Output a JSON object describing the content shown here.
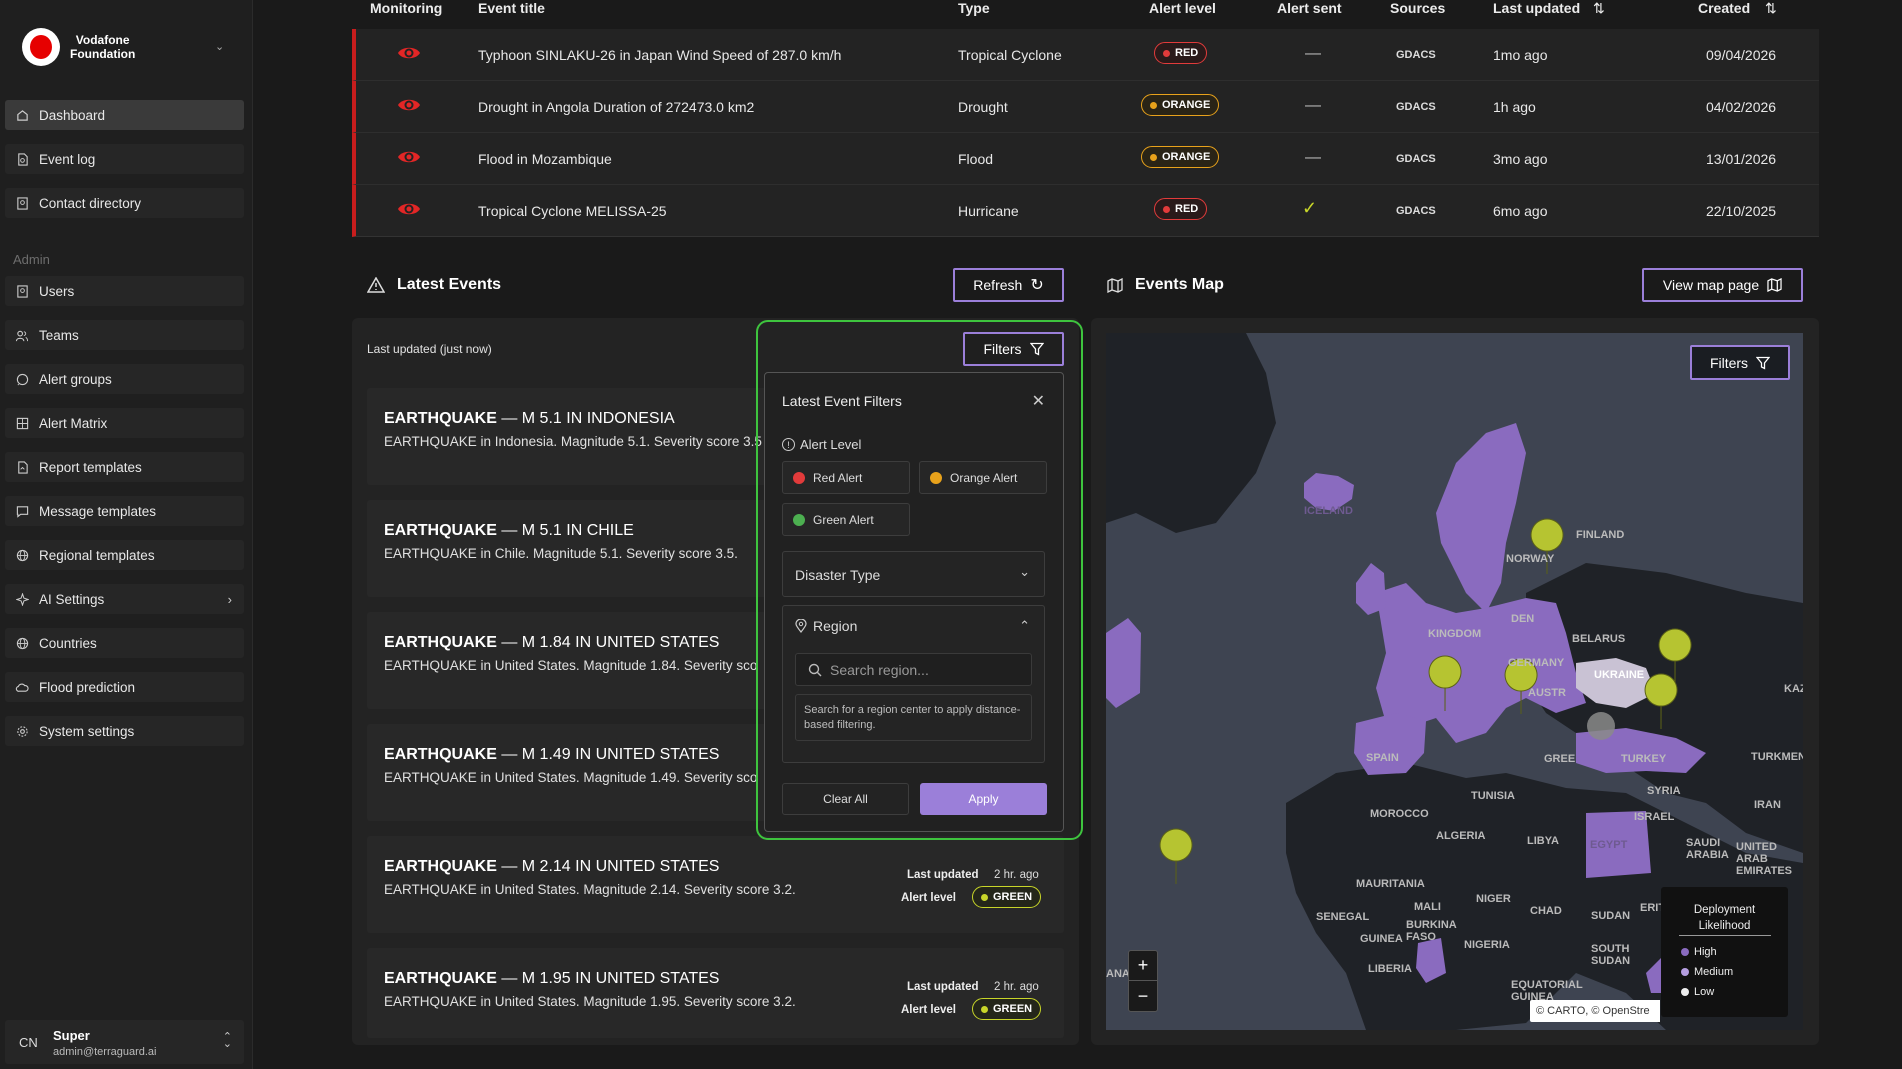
{
  "org": {
    "line1": "Vodafone",
    "line2": "Foundation"
  },
  "sidebar": {
    "items": [
      {
        "label": "Dashboard",
        "icon": "home-icon"
      },
      {
        "label": "Event log",
        "icon": "event-log-icon"
      },
      {
        "label": "Contact directory",
        "icon": "contact-icon"
      }
    ],
    "admin_label": "Admin",
    "admin_items": [
      {
        "label": "Users",
        "icon": "users-icon"
      },
      {
        "label": "Teams",
        "icon": "teams-icon"
      },
      {
        "label": "Alert groups",
        "icon": "alert-groups-icon"
      },
      {
        "label": "Alert Matrix",
        "icon": "matrix-icon"
      },
      {
        "label": "Report templates",
        "icon": "report-icon"
      },
      {
        "label": "Message templates",
        "icon": "message-icon"
      },
      {
        "label": "Regional templates",
        "icon": "globe-icon"
      },
      {
        "label": "AI Settings",
        "icon": "sparkle-icon"
      },
      {
        "label": "Countries",
        "icon": "globe-icon"
      },
      {
        "label": "Flood prediction",
        "icon": "cloud-icon"
      },
      {
        "label": "System settings",
        "icon": "gear-icon"
      }
    ]
  },
  "user": {
    "initials": "CN",
    "name": "Super",
    "email": "admin@terraguard.ai"
  },
  "table": {
    "headers": {
      "monitoring": "Monitoring",
      "title": "Event title",
      "type": "Type",
      "alert_level": "Alert level",
      "alert_sent": "Alert sent",
      "sources": "Sources",
      "last_updated": "Last updated",
      "created": "Created"
    },
    "rows": [
      {
        "title": "Typhoon SINLAKU-26 in Japan Wind Speed of 287.0 km/h",
        "type": "Tropical Cyclone",
        "level": "RED",
        "sent": "—",
        "source": "GDACS",
        "updated": "1mo ago",
        "created": "09/04/2026"
      },
      {
        "title": "Drought in Angola Duration of 272473.0 km2",
        "type": "Drought",
        "level": "ORANGE",
        "sent": "—",
        "source": "GDACS",
        "updated": "1h ago",
        "created": "04/02/2026"
      },
      {
        "title": "Flood in Mozambique",
        "type": "Flood",
        "level": "ORANGE",
        "sent": "—",
        "source": "GDACS",
        "updated": "3mo ago",
        "created": "13/01/2026"
      },
      {
        "title": "Tropical Cyclone MELISSA-25",
        "type": "Hurricane",
        "level": "RED",
        "sent": "✓",
        "source": "GDACS",
        "updated": "6mo ago",
        "created": "22/10/2025"
      }
    ]
  },
  "latest": {
    "title": "Latest Events",
    "refresh": "Refresh",
    "updated": "Last updated (just now)",
    "filters": "Filters",
    "last_updated_label": "Last updated",
    "alert_level_label": "Alert level",
    "cards": [
      {
        "kind": "EARTHQUAKE",
        "rest": " — M 5.1 IN INDONESIA",
        "desc": "EARTHQUAKE in Indonesia. Magnitude 5.1. Severity score 3.5"
      },
      {
        "kind": "EARTHQUAKE",
        "rest": " — M 5.1 IN CHILE",
        "desc": "EARTHQUAKE in Chile. Magnitude 5.1. Severity score 3.5."
      },
      {
        "kind": "EARTHQUAKE",
        "rest": " — M 1.84 IN UNITED STATES",
        "desc": "EARTHQUAKE in United States. Magnitude 1.84. Severity sco"
      },
      {
        "kind": "EARTHQUAKE",
        "rest": " — M 1.49 IN UNITED STATES",
        "desc": "EARTHQUAKE in United States. Magnitude 1.49. Severity sco"
      },
      {
        "kind": "EARTHQUAKE",
        "rest": " — M 2.14 IN UNITED STATES",
        "desc": "EARTHQUAKE in United States. Magnitude 2.14. Severity score 3.2.",
        "updated": "2 hr. ago",
        "level": "GREEN"
      },
      {
        "kind": "EARTHQUAKE",
        "rest": " — M 1.95 IN UNITED STATES",
        "desc": "EARTHQUAKE in United States. Magnitude 1.95. Severity score 3.2.",
        "updated": "2 hr. ago",
        "level": "GREEN"
      }
    ]
  },
  "filters_popup": {
    "title": "Latest Event Filters",
    "alert_level": "Alert Level",
    "chips": {
      "red": "Red Alert",
      "orange": "Orange Alert",
      "green": "Green Alert"
    },
    "disaster_type": "Disaster Type",
    "region": "Region",
    "search_placeholder": "Search region...",
    "hint": "Search for a region center to apply distance-based filtering.",
    "clear": "Clear All",
    "apply": "Apply"
  },
  "map": {
    "title": "Events Map",
    "view_btn": "View map page",
    "filters": "Filters",
    "legend_title": "Deployment Likelihood",
    "legend": {
      "high": "High",
      "medium": "Medium",
      "low": "Low"
    },
    "attribution": "© CARTO, © OpenStre",
    "zoom_in": "+",
    "zoom_out": "−",
    "labels": {
      "iceland": "ICELAND",
      "finland": "FINLAND",
      "norway": "NORWAY",
      "denmark": "DEN",
      "kingdom": "KINGDOM",
      "belarus": "BELARUS",
      "germany": "GERMANY",
      "ukraine": "UKRAINE",
      "austria": "AUSTR",
      "spain": "SPAIN",
      "greece": "GREE",
      "turkey": "TURKEY",
      "syria": "SYRIA",
      "tunisia": "TUNISIA",
      "morocco": "MOROCCO",
      "algeria": "ALGERIA",
      "libya": "LIBYA",
      "egypt": "EGYPT",
      "israel": "ISRAEL",
      "iran": "IRAN",
      "saudi": "SAUDI ARABIA",
      "uae": "UNITED ARAB EMIRATES",
      "turkmenistan": "TURKMENIS",
      "mauritania": "MAURITANIA",
      "mali": "MALI",
      "niger": "NIGER",
      "chad": "CHAD",
      "sudan": "SUDAN",
      "senegal": "SENEGAL",
      "burkina": "BURKINA FASO",
      "guinea": "GUINEA",
      "nigeria": "NIGERIA",
      "south_sudan": "SOUTH SUDAN",
      "liberia": "LIBERIA",
      "eq_guinea": "EQUATORIAL GUINEA",
      "eri": "ERIT",
      "kaz": "KAZ",
      "ana": "ANA"
    }
  },
  "colors": {
    "accent": "#9b7fd9",
    "red": "#e23b3b",
    "orange": "#e8a21b",
    "green": "#c8d629",
    "country": "#8a6bbf",
    "land": "#1f2227",
    "sea": "#3e4451"
  }
}
